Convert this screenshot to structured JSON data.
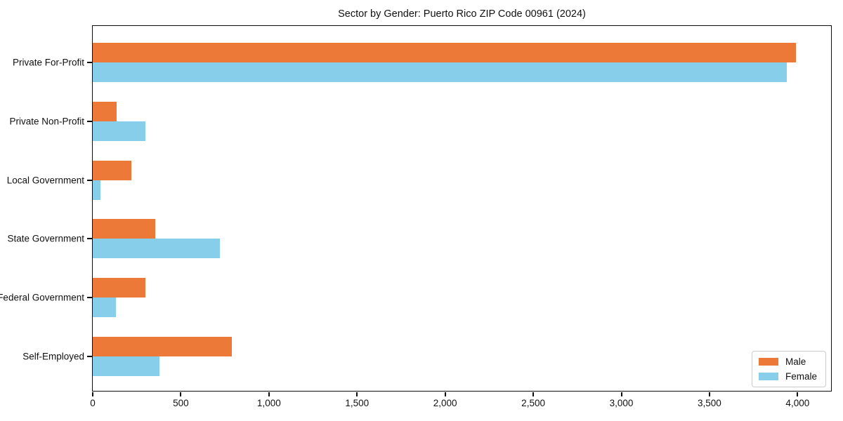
{
  "chart_data": {
    "type": "bar",
    "orientation": "horizontal",
    "title": "Sector by Gender: Puerto Rico ZIP Code 00961 (2024)",
    "categories": [
      "Private For-Profit",
      "Private Non-Profit",
      "Local Government",
      "State Government",
      "Federal Government",
      "Self-Employed"
    ],
    "series": [
      {
        "name": "Male",
        "color": "#ED7939",
        "values": [
          3990,
          135,
          220,
          355,
          300,
          790
        ]
      },
      {
        "name": "Female",
        "color": "#87CEEB",
        "values": [
          3940,
          300,
          45,
          720,
          130,
          380
        ]
      }
    ],
    "xlim": [
      0,
      4190
    ],
    "xticks": [
      0,
      500,
      1000,
      1500,
      2000,
      2500,
      3000,
      3500,
      4000
    ],
    "xtick_labels": [
      "0",
      "500",
      "1,000",
      "1,500",
      "2,000",
      "2,500",
      "3,000",
      "3,500",
      "4,000"
    ],
    "xlabel": "",
    "ylabel": "",
    "grid": false,
    "background": "#ffffff",
    "legend_position": "lower right"
  }
}
